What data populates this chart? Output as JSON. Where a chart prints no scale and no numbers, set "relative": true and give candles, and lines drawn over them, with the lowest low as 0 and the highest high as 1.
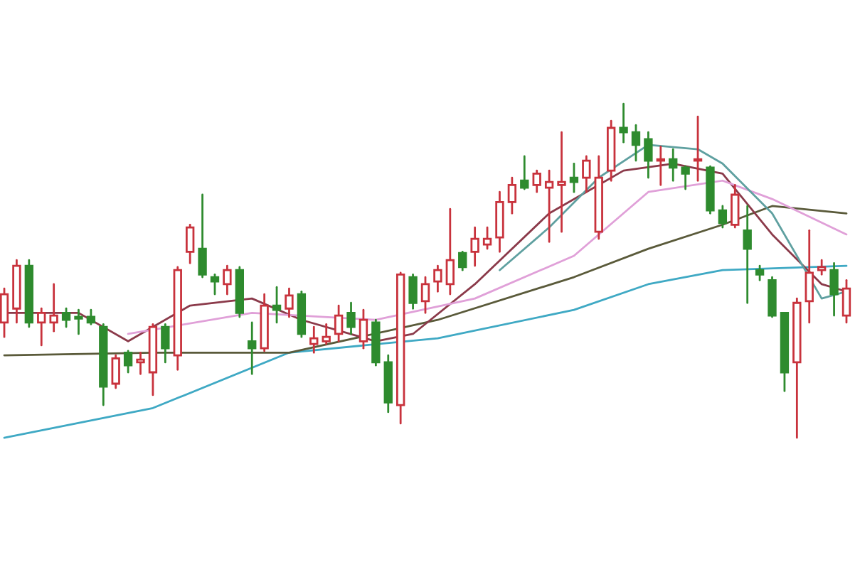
{
  "chart_data": {
    "type": "candlestick",
    "relative": true,
    "categories": [
      null,
      null,
      null,
      null,
      null,
      null,
      null,
      null,
      null,
      null,
      null,
      null,
      null,
      null,
      null,
      null,
      null,
      null,
      null,
      null,
      null,
      null,
      null,
      null,
      null,
      null,
      null,
      null,
      null,
      null,
      null,
      null,
      null,
      null,
      null,
      null,
      null,
      null,
      null,
      null,
      null,
      null,
      null,
      null,
      null,
      null,
      null,
      null,
      null,
      null,
      null,
      null,
      null,
      null,
      null,
      null,
      null,
      null,
      null,
      null,
      null,
      null,
      null,
      null,
      null,
      null,
      null,
      null,
      null
    ],
    "ohlc": [
      [
        0.345,
        0.447,
        0.302,
        0.43
      ],
      [
        0.387,
        0.532,
        0.345,
        0.515
      ],
      [
        0.515,
        0.532,
        0.332,
        0.345
      ],
      [
        0.345,
        0.387,
        0.277,
        0.374
      ],
      [
        0.345,
        0.46,
        0.319,
        0.366
      ],
      [
        0.374,
        0.387,
        0.332,
        0.353
      ],
      [
        0.362,
        0.383,
        0.311,
        0.357
      ],
      [
        0.362,
        0.383,
        0.34,
        0.345
      ],
      [
        0.332,
        0.34,
        0.098,
        0.153
      ],
      [
        0.162,
        0.247,
        0.149,
        0.238
      ],
      [
        0.255,
        0.26,
        0.196,
        0.217
      ],
      [
        0.226,
        0.255,
        0.191,
        0.234
      ],
      [
        0.196,
        0.34,
        0.128,
        0.332
      ],
      [
        0.332,
        0.34,
        0.226,
        0.268
      ],
      [
        0.247,
        0.511,
        0.204,
        0.502
      ],
      [
        0.557,
        0.638,
        0.523,
        0.63
      ],
      [
        0.566,
        0.728,
        0.481,
        0.489
      ],
      [
        0.481,
        0.489,
        0.43,
        0.468
      ],
      [
        0.46,
        0.515,
        0.43,
        0.502
      ],
      [
        0.502,
        0.511,
        0.362,
        0.374
      ],
      [
        0.289,
        0.345,
        0.191,
        0.268
      ],
      [
        0.268,
        0.43,
        0.26,
        0.396
      ],
      [
        0.396,
        0.451,
        0.345,
        0.383
      ],
      [
        0.387,
        0.447,
        0.362,
        0.426
      ],
      [
        0.43,
        0.438,
        0.302,
        0.311
      ],
      [
        0.281,
        0.332,
        0.255,
        0.298
      ],
      [
        0.289,
        0.34,
        0.281,
        0.302
      ],
      [
        0.311,
        0.396,
        0.289,
        0.366
      ],
      [
        0.374,
        0.404,
        0.311,
        0.332
      ],
      [
        0.289,
        0.383,
        0.268,
        0.353
      ],
      [
        0.345,
        0.353,
        0.217,
        0.226
      ],
      [
        0.226,
        0.247,
        0.077,
        0.106
      ],
      [
        0.098,
        0.494,
        0.043,
        0.489
      ],
      [
        0.481,
        0.489,
        0.387,
        0.404
      ],
      [
        0.409,
        0.481,
        0.374,
        0.46
      ],
      [
        0.468,
        0.515,
        0.438,
        0.502
      ],
      [
        0.46,
        0.685,
        0.43,
        0.532
      ],
      [
        0.553,
        0.557,
        0.502,
        0.511
      ],
      [
        0.557,
        0.63,
        0.515,
        0.596
      ],
      [
        0.579,
        0.63,
        0.566,
        0.596
      ],
      [
        0.6,
        0.736,
        0.557,
        0.706
      ],
      [
        0.706,
        0.779,
        0.672,
        0.757
      ],
      [
        0.77,
        0.843,
        0.745,
        0.749
      ],
      [
        0.757,
        0.8,
        0.736,
        0.791
      ],
      [
        0.749,
        0.8,
        0.587,
        0.766
      ],
      [
        0.757,
        0.915,
        0.617,
        0.766
      ],
      [
        0.779,
        0.821,
        0.736,
        0.766
      ],
      [
        0.779,
        0.843,
        0.736,
        0.83
      ],
      [
        0.617,
        0.843,
        0.596,
        0.779
      ],
      [
        0.8,
        0.949,
        0.77,
        0.928
      ],
      [
        0.928,
        1,
        0.885,
        0.915
      ],
      [
        0.915,
        0.936,
        0.83,
        0.877
      ],
      [
        0.894,
        0.915,
        0.779,
        0.83
      ],
      [
        0.83,
        0.872,
        0.757,
        0.834
      ],
      [
        0.834,
        0.864,
        0.77,
        0.809
      ],
      [
        0.809,
        0.813,
        0.745,
        0.791
      ],
      [
        0.83,
        0.962,
        0.77,
        0.834
      ],
      [
        0.809,
        0.813,
        0.672,
        0.681
      ],
      [
        0.681,
        0.694,
        0.63,
        0.643
      ],
      [
        0.638,
        0.757,
        0.63,
        0.728
      ],
      [
        0.621,
        0.694,
        0.404,
        0.566
      ],
      [
        0.502,
        0.515,
        0.472,
        0.489
      ],
      [
        0.472,
        0.481,
        0.362,
        0.366
      ],
      [
        0.374,
        0.374,
        0.14,
        0.196
      ],
      [
        0.226,
        0.417,
        0,
        0.404
      ],
      [
        0.409,
        0.621,
        0.345,
        0.494
      ],
      [
        0.502,
        0.532,
        0.489,
        0.511
      ],
      [
        0.502,
        0.523,
        0.366,
        0.43
      ],
      [
        0.366,
        0.472,
        0.345,
        0.447
      ]
    ],
    "series": [
      {
        "type": "line",
        "color": "#3fa9c4",
        "values": [
          0,
          null,
          null,
          null,
          null,
          null,
          null,
          null,
          null,
          null,
          null,
          null,
          0.089,
          null,
          null,
          null,
          null,
          null,
          null,
          null,
          null,
          null,
          null,
          0.255,
          null,
          null,
          null,
          null,
          null,
          null,
          null,
          null,
          null,
          null,
          null,
          0.298,
          null,
          null,
          null,
          null,
          null,
          null,
          null,
          null,
          null,
          null,
          0.383,
          null,
          null,
          null,
          null,
          null,
          0.46,
          null,
          null,
          null,
          null,
          null,
          0.502,
          null,
          null,
          null,
          null,
          null,
          null,
          null,
          null,
          null,
          0.515
        ]
      },
      {
        "type": "line",
        "color": "#5a5a3a",
        "values": [
          0.247,
          null,
          null,
          null,
          null,
          null,
          null,
          null,
          null,
          null,
          null,
          null,
          0.255,
          null,
          null,
          null,
          null,
          null,
          null,
          null,
          null,
          null,
          null,
          0.255,
          null,
          null,
          null,
          null,
          null,
          null,
          null,
          null,
          null,
          null,
          null,
          0.353,
          null,
          null,
          null,
          null,
          null,
          null,
          null,
          null,
          null,
          null,
          0.481,
          null,
          null,
          null,
          null,
          null,
          0.566,
          null,
          null,
          null,
          null,
          null,
          0.638,
          null,
          null,
          null,
          0.694,
          null,
          null,
          null,
          null,
          null,
          0.672
        ]
      },
      {
        "type": "line",
        "color": "#8b3a4a",
        "values": [
          0.374,
          null,
          null,
          null,
          null,
          null,
          0.374,
          null,
          null,
          null,
          0.289,
          null,
          null,
          null,
          null,
          0.396,
          null,
          null,
          null,
          null,
          0.417,
          null,
          null,
          null,
          0.353,
          null,
          null,
          null,
          null,
          null,
          0.289,
          null,
          null,
          0.311,
          null,
          null,
          null,
          null,
          0.46,
          null,
          null,
          null,
          null,
          null,
          0.672,
          null,
          null,
          null,
          null,
          null,
          0.8,
          null,
          null,
          null,
          0.821,
          null,
          null,
          null,
          0.791,
          null,
          null,
          null,
          0.609,
          null,
          null,
          null,
          0.46,
          null,
          0.438
        ]
      },
      {
        "type": "line",
        "color": "#e0a0d8",
        "values": [
          null,
          null,
          null,
          null,
          null,
          null,
          null,
          null,
          null,
          null,
          0.311,
          null,
          null,
          null,
          null,
          null,
          null,
          null,
          null,
          null,
          0.374,
          null,
          null,
          null,
          null,
          null,
          null,
          null,
          null,
          null,
          0.353,
          null,
          null,
          null,
          null,
          null,
          null,
          null,
          0.417,
          null,
          null,
          null,
          null,
          null,
          null,
          null,
          0.545,
          null,
          null,
          null,
          null,
          null,
          0.736,
          null,
          null,
          null,
          null,
          null,
          0.77,
          null,
          null,
          null,
          0.715,
          null,
          null,
          null,
          null,
          null,
          0.609
        ]
      },
      {
        "type": "line",
        "color": "#5fa0a0",
        "values": [
          null,
          null,
          null,
          null,
          null,
          null,
          null,
          null,
          null,
          null,
          null,
          null,
          null,
          null,
          null,
          null,
          null,
          null,
          null,
          null,
          null,
          null,
          null,
          null,
          null,
          null,
          null,
          null,
          null,
          null,
          null,
          null,
          null,
          null,
          null,
          null,
          null,
          null,
          null,
          null,
          0.502,
          null,
          null,
          null,
          0.63,
          null,
          null,
          null,
          0.779,
          null,
          null,
          null,
          0.877,
          null,
          null,
          null,
          0.864,
          null,
          0.821,
          null,
          null,
          null,
          0.672,
          null,
          null,
          null,
          0.417,
          null,
          0.438
        ]
      }
    ]
  }
}
